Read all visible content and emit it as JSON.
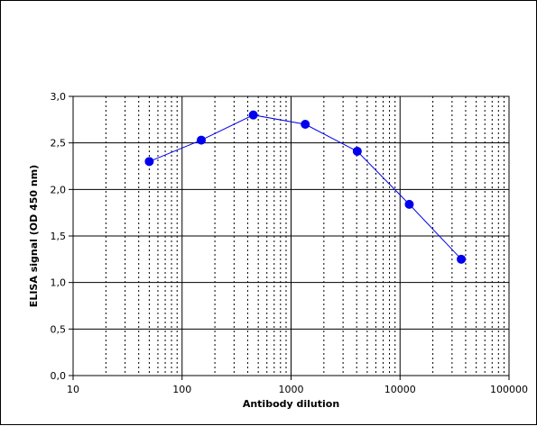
{
  "chart_data": {
    "type": "scatter",
    "xscale": "log",
    "xlabel": "Antibody dilution",
    "ylabel": "ELISA signal (OD 450 nm)",
    "xlim": [
      10,
      100000
    ],
    "ylim": [
      0,
      3.0
    ],
    "x_tick_labels": [
      "10",
      "100",
      "1000",
      "10000",
      "100000"
    ],
    "y_tick_labels": [
      "0,0",
      "0,5",
      "1,0",
      "1,5",
      "2,0",
      "2,5",
      "3,0"
    ],
    "grid": true,
    "legend": "none",
    "series": [
      {
        "color": "#0000ee",
        "x": [
          50,
          150,
          450,
          1350,
          4050,
          12150,
          36450
        ],
        "y": [
          2.3,
          2.53,
          2.8,
          2.7,
          2.41,
          1.84,
          1.25
        ]
      }
    ]
  }
}
